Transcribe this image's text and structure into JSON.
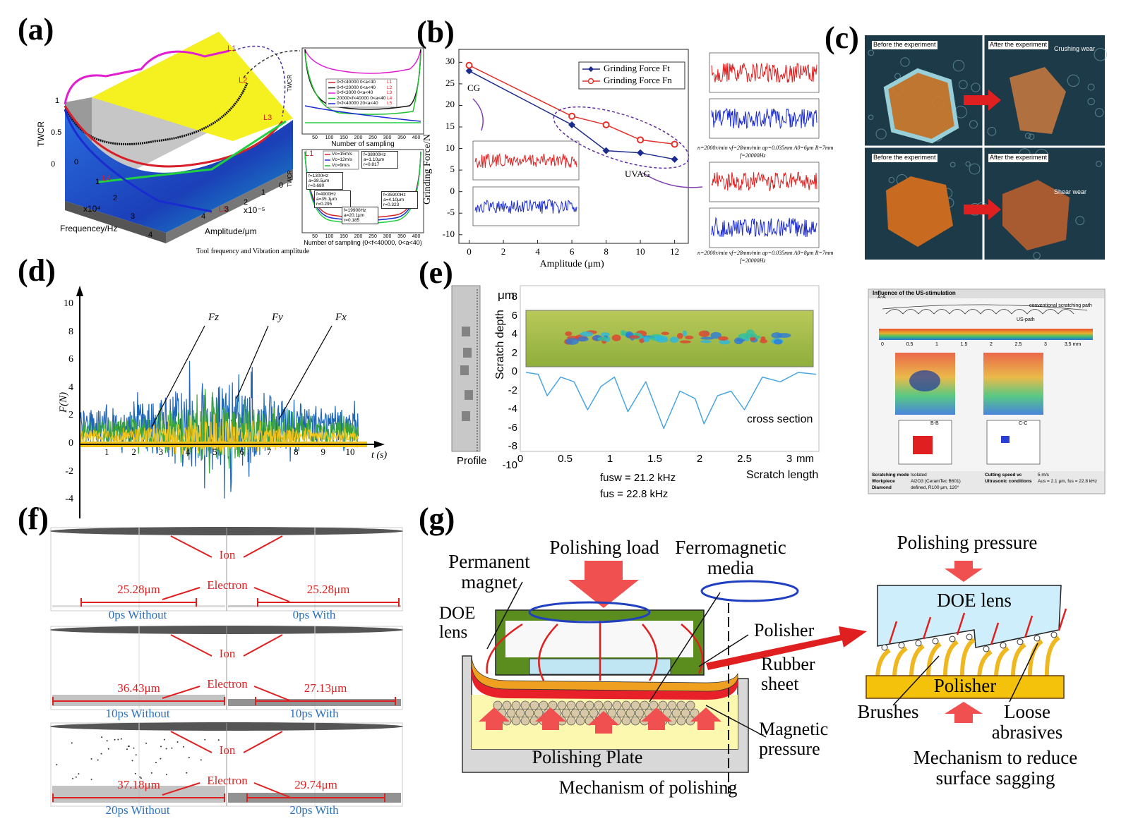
{
  "figure": {
    "a": {
      "label": "(a)",
      "z_label": "TWCR",
      "x_label": "Frequencey/Hz",
      "y_label": "Amplitude/μm",
      "x_exp": "x10⁴",
      "y_exp": "x10⁻⁵",
      "curves": [
        "L1",
        "L2",
        "L3",
        "L4",
        "L5"
      ],
      "z_ticks": [
        1,
        0.5,
        0
      ],
      "x_ticks": [
        0,
        1,
        2,
        3,
        4
      ],
      "y_ticks": [
        0,
        1,
        2,
        3,
        4
      ],
      "caption": "Tool frequency and Vibration amplitude",
      "inset1": {
        "y_label": "TWCR",
        "x_label": "Number of sampling",
        "x_ticks": [
          50,
          100,
          150,
          200,
          250,
          300,
          350,
          400
        ],
        "legend": [
          "0<f<40000 0<a<40",
          "0<f<20000 0<a<40",
          "0<f<3000 0<a<40",
          "20000<f<40000 0<a<40",
          "0<f<40000 20<a<40"
        ]
      },
      "inset2": {
        "y_label": "TWCR",
        "x_label": "Number of sampling (0<f<40000, 0<a<40)",
        "tag": "L1",
        "x_ticks": [
          50,
          100,
          150,
          200,
          250,
          300,
          350,
          400
        ],
        "legend": [
          "Vc=15m/s",
          "Vc=12m/s",
          "Vc=9m/s"
        ],
        "boxes": [
          "f=38900Hz a=1.10μm r=0.817",
          "f=1300Hz a=38.5μm r=0.680",
          "f=4900Hz a=35.1μm r=0.295",
          "f=19900Hz a=20.1μm r=0.185",
          "f=35900Hz a=4.10μm r=0.323"
        ]
      }
    },
    "b": {
      "label": "(b)",
      "annotations": [
        "CG",
        "UVAG"
      ],
      "caption_1": "n=2000r/min vf=28mm/min ap=0.035mm A0=6μm R=7mm",
      "caption_1b": "f=20000Hz",
      "caption_2": "n=2000r/min vf=28mm/min ap=0.035mm A0=8μm R=7mm",
      "caption_2b": "f=20000Hz"
    },
    "c": {
      "label": "(c)",
      "before": "Before the experiment",
      "after": "After the experiment",
      "wear_1": "Crushing wear",
      "wear_2": "Shear wear"
    },
    "d": {
      "label": "(d)",
      "y_label": "F(N)",
      "x_label": "t (s)",
      "forces": [
        "Fz",
        "Fy",
        "Fx"
      ],
      "y_ticks": [
        10,
        8,
        6,
        4,
        2,
        0,
        -2,
        -4
      ],
      "x_ticks": [
        1,
        2,
        3,
        4,
        5,
        6,
        7,
        8,
        9,
        10
      ]
    },
    "e": {
      "label": "(e)",
      "y_unit": "μm",
      "y_label": "Scratch depth",
      "y_ticks": [
        8,
        6,
        4,
        2,
        0,
        -2,
        -4,
        -6,
        -8,
        -10
      ],
      "x_ticks": [
        0,
        0.5,
        1,
        1.5,
        2,
        2.5,
        3
      ],
      "x_unit": "mm",
      "x_label": "Scratch length",
      "curve_label": "cross section",
      "strip_label": "Profile",
      "freq_1": "fusw = 21.2 kHz",
      "freq_2": "fus = 22.8 kHz",
      "right": {
        "title": "Influence of the US-stimulation",
        "path_1": "conventional scratching path",
        "path_2": "US-path",
        "section": "A-A",
        "ticks": [
          "0",
          "0.5",
          "1",
          "1.5",
          "2",
          "2.5",
          "3",
          "3.5 mm"
        ],
        "cuts": [
          "B-B",
          "C-C"
        ],
        "footer": [
          "Scratching mode",
          "Isolated",
          "Workpiece",
          "Al2O3 (CeramTec B601)",
          "Diamond",
          "defined, R100 µm, 120°",
          "Cutting speed vc",
          "5 m/s",
          "Ultrasonic conditions",
          "Aus = 2.1 µm, fus = 22.8 kHz"
        ]
      }
    },
    "f": {
      "label": "(f)",
      "ion": "Ion",
      "electron": "Electron",
      "rows": [
        {
          "left": "25.28μm",
          "right": "25.28μm",
          "left_caption": "0ps Without",
          "right_caption": "0ps With"
        },
        {
          "left": "36.43μm",
          "right": "27.13μm",
          "left_caption": "10ps Without",
          "right_caption": "10ps With"
        },
        {
          "left": "37.18μm",
          "right": "29.74μm",
          "left_caption": "20ps Without",
          "right_caption": "20ps With"
        }
      ]
    },
    "g": {
      "label": "(g)",
      "left": {
        "load": "Polishing load",
        "media": "Ferromagnetic media",
        "magnet": "Permanent magnet",
        "lens": "DOE lens",
        "polisher": "Polisher",
        "rubber": "Rubber sheet",
        "pressure": "Magnetic pressure",
        "plate": "Polishing Plate",
        "caption": "Mechanism of polishing"
      },
      "right": {
        "pressure": "Polishing pressure",
        "lens": "DOE lens",
        "polisher": "Polisher",
        "brushes": "Brushes",
        "abrasives": "Loose abrasives",
        "caption": "Mechanism to reduce surface sagging"
      }
    }
  },
  "chart_data": {
    "type": "line",
    "x_label": "Amplitude (μm)",
    "y_label": "Grinding Force/N",
    "x": [
      0,
      6,
      8,
      10,
      12
    ],
    "series": [
      {
        "name": "Grinding Force Ft",
        "color": "#1c2c8c",
        "marker": "diamond",
        "values": [
          28,
          15.5,
          9.5,
          9,
          7.5
        ]
      },
      {
        "name": "Grinding Force Fn",
        "color": "#e5302a",
        "marker": "circle",
        "values": [
          29.3,
          17.5,
          15.5,
          12,
          11
        ]
      }
    ],
    "xlim": [
      -0.6,
      12.8
    ],
    "ylim": [
      -12,
      33
    ],
    "xticks": [
      0,
      2,
      4,
      6,
      8,
      10,
      12
    ],
    "yticks": [
      -10,
      -5,
      0,
      5,
      10,
      15,
      20,
      25,
      30
    ],
    "legend": "upper right"
  }
}
